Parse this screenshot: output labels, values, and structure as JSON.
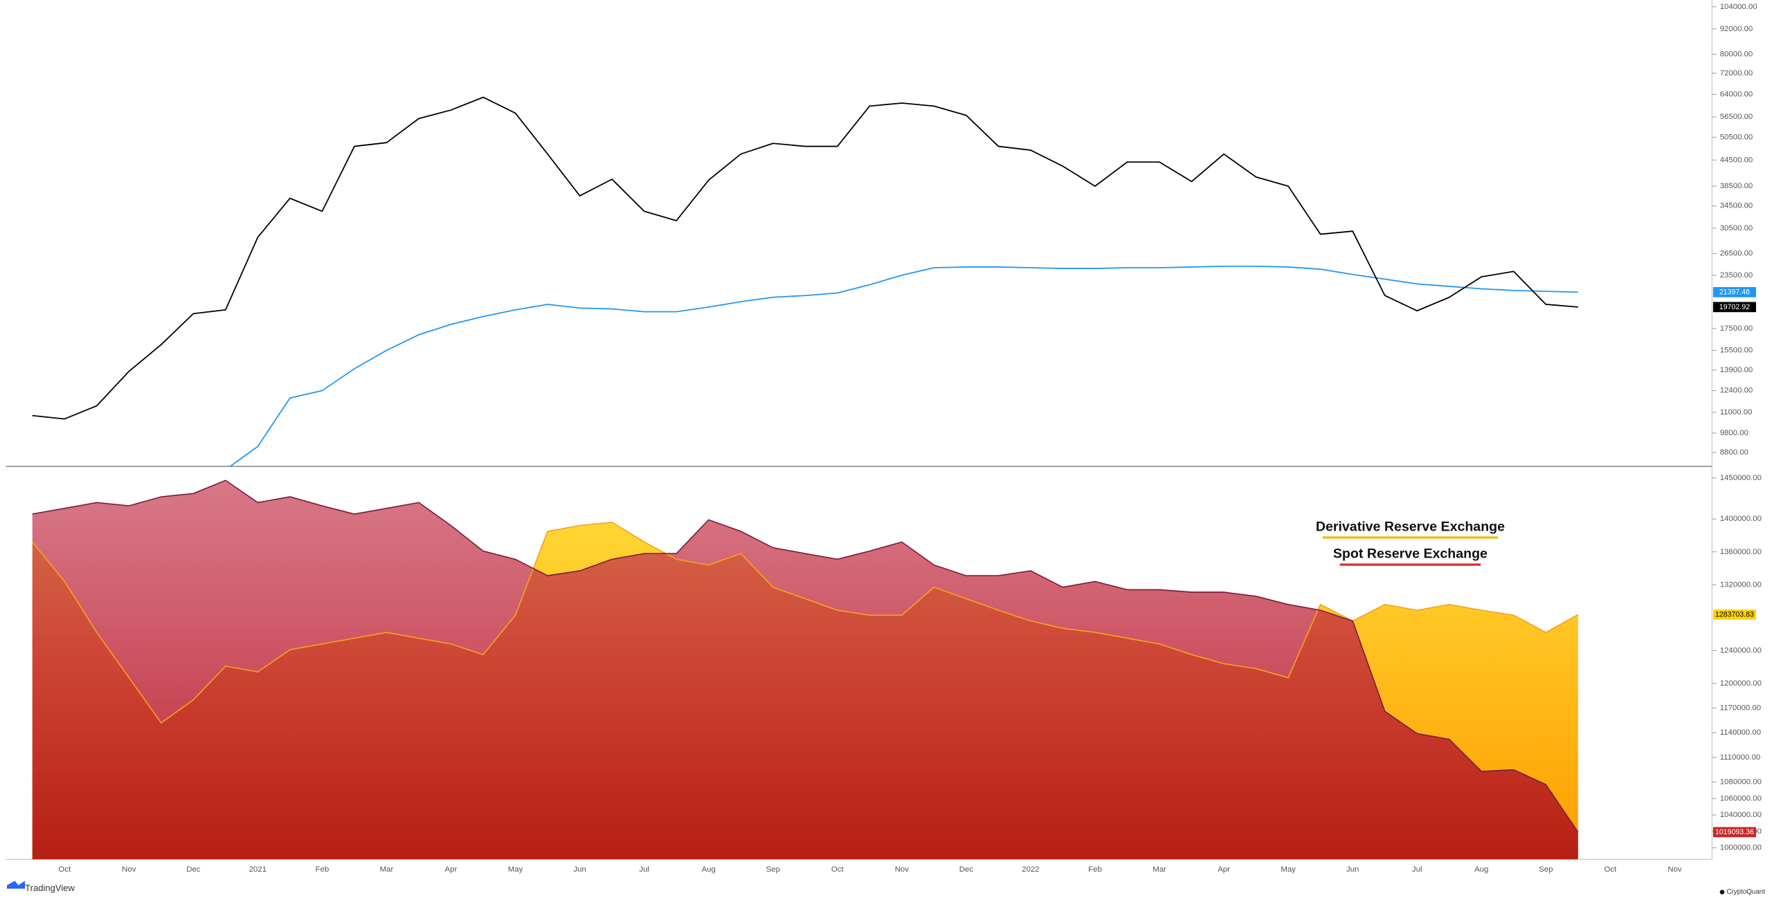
{
  "chart_data": {
    "type": "multi-pane",
    "categories": [
      null,
      "Oct",
      null,
      "Nov",
      null,
      "Dec",
      null,
      "2021",
      null,
      "Feb",
      null,
      "Mar",
      null,
      "Apr",
      null,
      "May",
      null,
      "Jun",
      null,
      "Jul",
      null,
      "Aug",
      null,
      "Sep",
      null,
      "Oct",
      null,
      "Nov",
      null,
      "Dec",
      null,
      "2022",
      null,
      "Feb",
      null,
      "Mar",
      null,
      "Apr",
      null,
      "May",
      null,
      "Jun",
      null,
      "Jul",
      null,
      "Aug",
      null,
      "Sep",
      null,
      "Oct",
      null,
      "Nov"
    ],
    "panes": [
      {
        "type": "line",
        "log_scale": true,
        "grid": false,
        "ylim": [
          8150,
          108000
        ],
        "yticks": [
          {
            "value": 8800,
            "label": "8800.00"
          },
          {
            "value": 9800,
            "label": "9800.00"
          },
          {
            "value": 11000,
            "label": "11000.00"
          },
          {
            "value": 12400,
            "label": "12400.00"
          },
          {
            "value": 13900,
            "label": "13900.00"
          },
          {
            "value": 15500,
            "label": "15500.00"
          },
          {
            "value": 17500,
            "label": "17500.00"
          },
          {
            "value": 23500,
            "label": "23500.00"
          },
          {
            "value": 26500,
            "label": "26500.00"
          },
          {
            "value": 30500,
            "label": "30500.00"
          },
          {
            "value": 34500,
            "label": "34500.00"
          },
          {
            "value": 38500,
            "label": "38500.00"
          },
          {
            "value": 44500,
            "label": "44500.00"
          },
          {
            "value": 50500,
            "label": "50500.00"
          },
          {
            "value": 56500,
            "label": "56500.00"
          },
          {
            "value": 64000,
            "label": "64000.00"
          },
          {
            "value": 72000,
            "label": "72000.00"
          },
          {
            "value": 80000,
            "label": "80000.00"
          },
          {
            "value": 92000,
            "label": "92000.00"
          },
          {
            "value": 104000,
            "label": "104000.00"
          }
        ],
        "series": [
          {
            "color": "#2196f3",
            "values": [
              null,
              null,
              null,
              null,
              null,
              null,
              8000,
              9100,
              11900,
              12400,
              14000,
              15500,
              16900,
              17900,
              18700,
              19400,
              20000,
              19600,
              19500,
              19200,
              19200,
              19700,
              20300,
              20800,
              21000,
              21300,
              22300,
              23500,
              24500,
              24600,
              24600,
              24500,
              24400,
              24400,
              24500,
              24500,
              24600,
              24700,
              24700,
              24600,
              24300,
              23600,
              23000,
              22400,
              22100,
              21800,
              21600,
              21500,
              21397.48,
              null,
              null,
              null
            ]
          },
          {
            "color": "#000000",
            "values": [
              10800,
              10600,
              11400,
              13800,
              16000,
              19000,
              19400,
              29000,
              36000,
              33500,
              48000,
              49000,
              56000,
              58700,
              63000,
              57700,
              46000,
              36500,
              40000,
              33500,
              31800,
              39800,
              46000,
              48800,
              48000,
              48000,
              60000,
              61000,
              60000,
              57000,
              48000,
              47000,
              43000,
              38500,
              44000,
              44000,
              39500,
              46000,
              40500,
              38500,
              29500,
              30000,
              21000,
              19300,
              20800,
              23300,
              24000,
              20000,
              19702.92,
              null,
              null,
              null
            ]
          }
        ]
      },
      {
        "type": "area",
        "grid": false,
        "legend": "right",
        "ylim": [
          986000,
          1464000
        ],
        "yticks": [
          {
            "value": 1000000,
            "label": "1000000.00"
          },
          {
            "value": 1020000,
            "label": "1020000.00"
          },
          {
            "value": 1040000,
            "label": "1040000.00"
          },
          {
            "value": 1060000,
            "label": "1060000.00"
          },
          {
            "value": 1080000,
            "label": "1080000.00"
          },
          {
            "value": 1110000,
            "label": "1110000.00"
          },
          {
            "value": 1140000,
            "label": "1140000.00"
          },
          {
            "value": 1170000,
            "label": "1170000.00"
          },
          {
            "value": 1200000,
            "label": "1200000.00"
          },
          {
            "value": 1240000,
            "label": "1240000.00"
          },
          {
            "value": 1320000,
            "label": "1320000.00"
          },
          {
            "value": 1360000,
            "label": "1360000.00"
          },
          {
            "value": 1400000,
            "label": "1400000.00"
          },
          {
            "value": 1450000,
            "label": "1450000.00"
          }
        ],
        "series": [
          {
            "name": "Derivative Reserve Exchange",
            "color": "#f7a21a",
            "values": [
              1372000,
              1324000,
              1262000,
              1207000,
              1152000,
              1180000,
              1221000,
              1214000,
              1241000,
              1248000,
              1255000,
              1262000,
              1255000,
              1248000,
              1235000,
              1283000,
              1385000,
              1392000,
              1396000,
              1372000,
              1351000,
              1344000,
              1358000,
              1317000,
              1303000,
              1289000,
              1283000,
              1283000,
              1317000,
              1303000,
              1289000,
              1276000,
              1267000,
              1262000,
              1255000,
              1248000,
              1235000,
              1224000,
              1218000,
              1207000,
              1296000,
              1276000,
              1296000,
              1289000,
              1296000,
              1289000,
              1283000,
              1262000,
              1283703.83,
              null,
              null,
              null
            ]
          },
          {
            "name": "Spot Reserve Exchange",
            "color": "#c62828",
            "values": [
              1406000,
              1413000,
              1420000,
              1416000,
              1427000,
              1431000,
              1447000,
              1420000,
              1427000,
              1416000,
              1406000,
              1413000,
              1420000,
              1392000,
              1361000,
              1351000,
              1331000,
              1337000,
              1351000,
              1358000,
              1358000,
              1399000,
              1385000,
              1365000,
              1358000,
              1351000,
              1361000,
              1372000,
              1344000,
              1331000,
              1331000,
              1337000,
              1317000,
              1324000,
              1314000,
              1314000,
              1311000,
              1311000,
              1306000,
              1296000,
              1289000,
              1276000,
              1166000,
              1139000,
              1132000,
              1093000,
              1095000,
              1077000,
              1019093.36,
              null,
              null,
              null
            ]
          }
        ]
      }
    ]
  },
  "branding": {
    "left": "TradingView",
    "right": "CryptoQuant"
  }
}
